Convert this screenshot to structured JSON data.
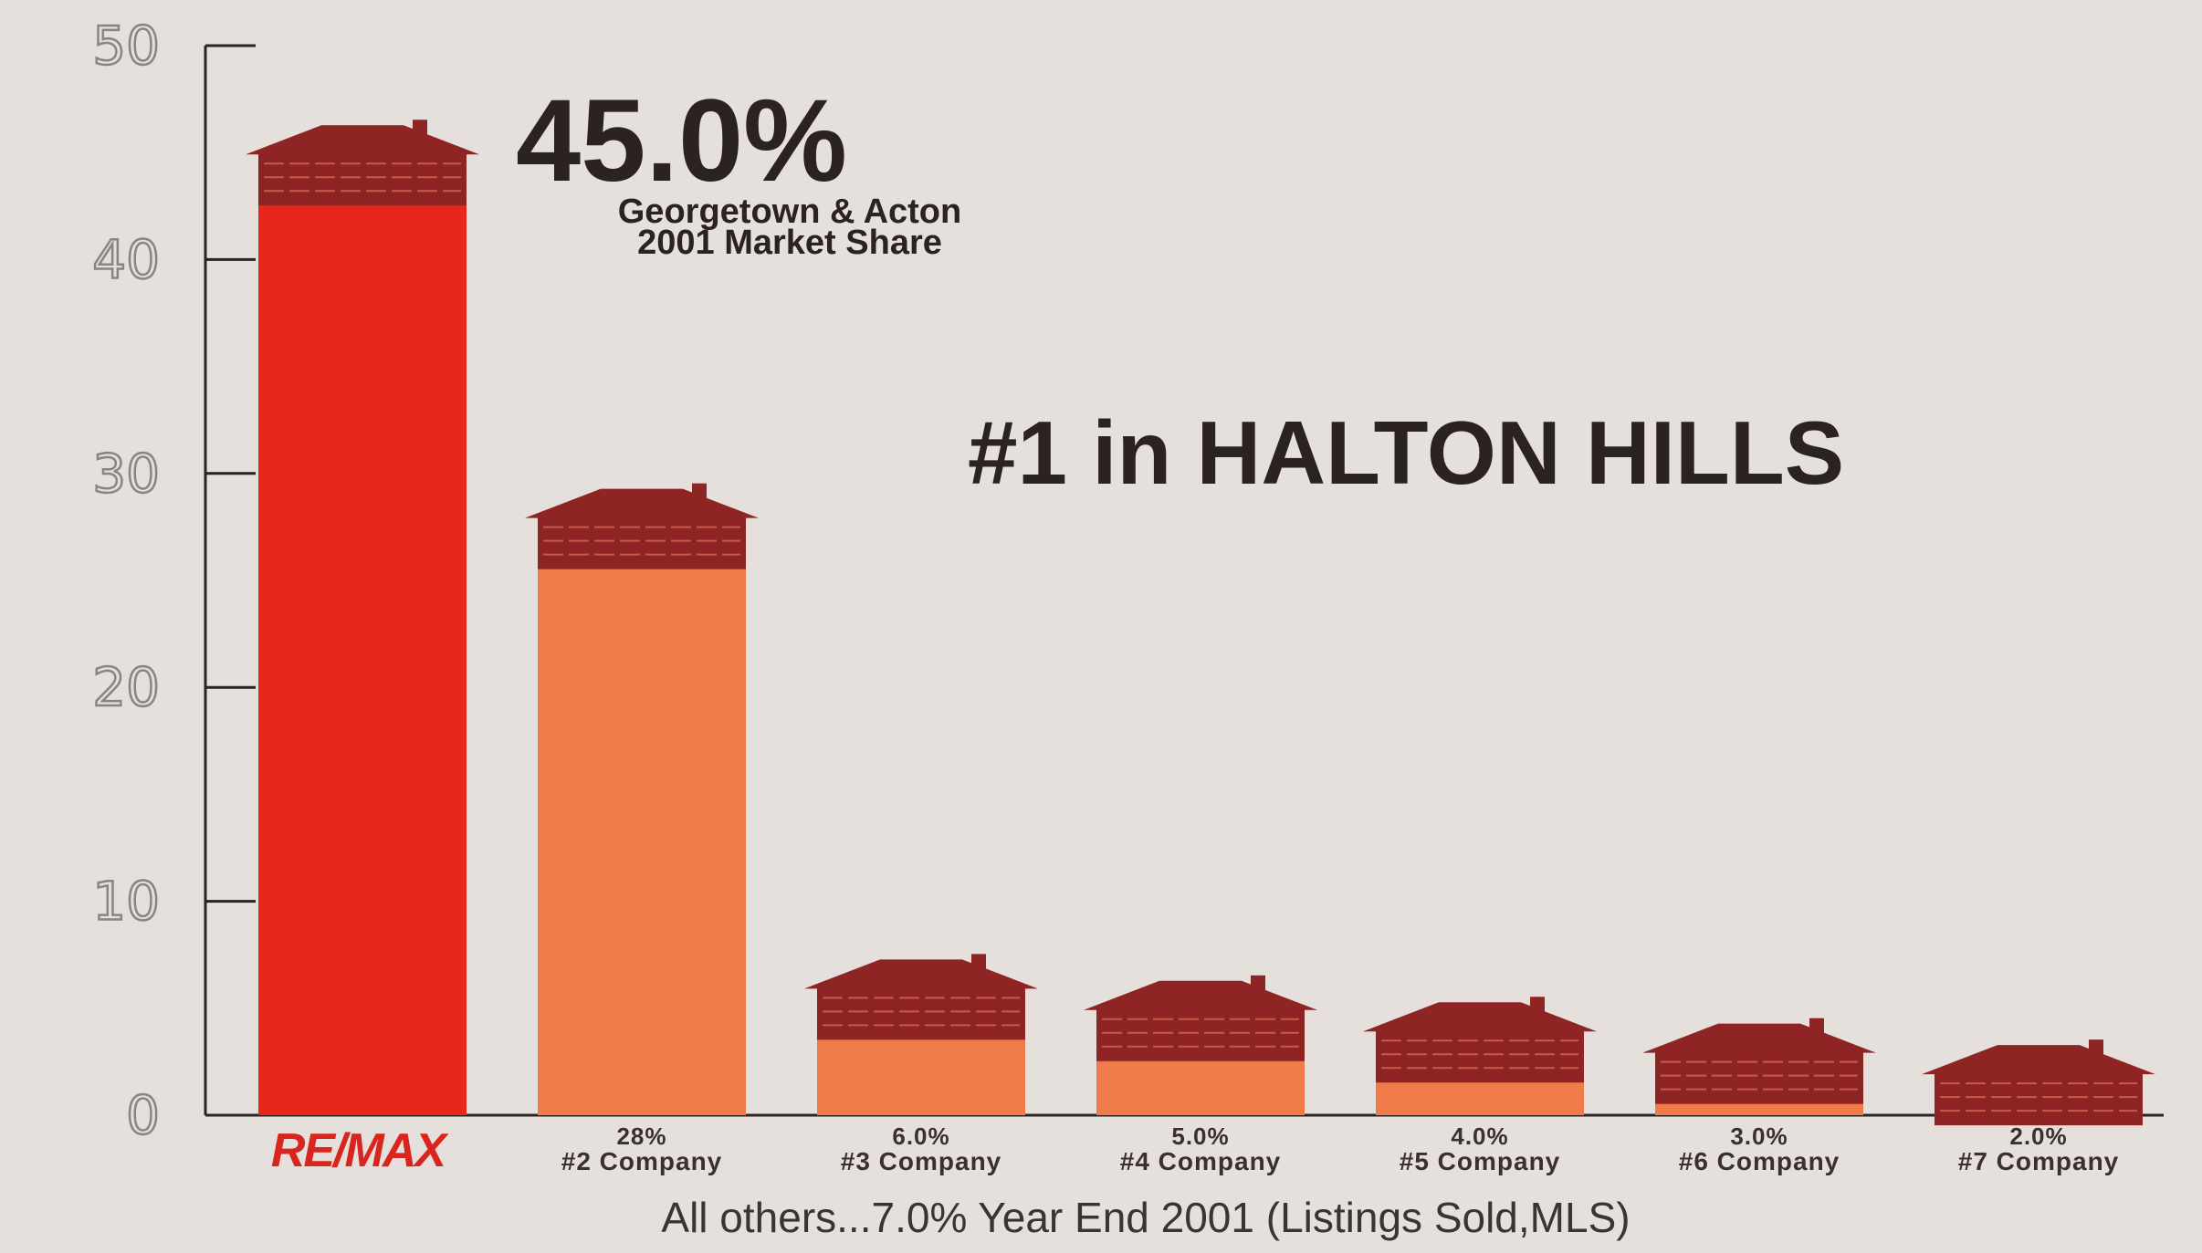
{
  "colors": {
    "background": "#e6e0dc",
    "lead_bar": "#e8261a",
    "other_bar": "#ef7a4a",
    "roof": "#8e2424",
    "axis": "#2b2222"
  },
  "annotation": {
    "percent": "45.0%",
    "line1": "Georgetown & Acton",
    "line2": "2001 Market Share"
  },
  "headline": "#1 in HALTON HILLS",
  "footnote": "All others...7.0% Year End 2001 (Listings Sold,MLS)",
  "chart_data": {
    "type": "bar",
    "ylim": [
      0,
      50
    ],
    "yticks": [
      0,
      10,
      20,
      30,
      40,
      50
    ],
    "grid": false,
    "bar_icon": "house-roof-icon",
    "categories": [
      {
        "value_label": "",
        "name": "RE/MAX"
      },
      {
        "value_label": "28%",
        "name": "#2 Company"
      },
      {
        "value_label": "6.0%",
        "name": "#3 Company"
      },
      {
        "value_label": "5.0%",
        "name": "#4 Company"
      },
      {
        "value_label": "4.0%",
        "name": "#5 Company"
      },
      {
        "value_label": "3.0%",
        "name": "#6 Company"
      },
      {
        "value_label": "2.0%",
        "name": "#7 Company"
      }
    ],
    "values": [
      45.0,
      28.0,
      6.0,
      5.0,
      4.0,
      3.0,
      2.0
    ]
  }
}
